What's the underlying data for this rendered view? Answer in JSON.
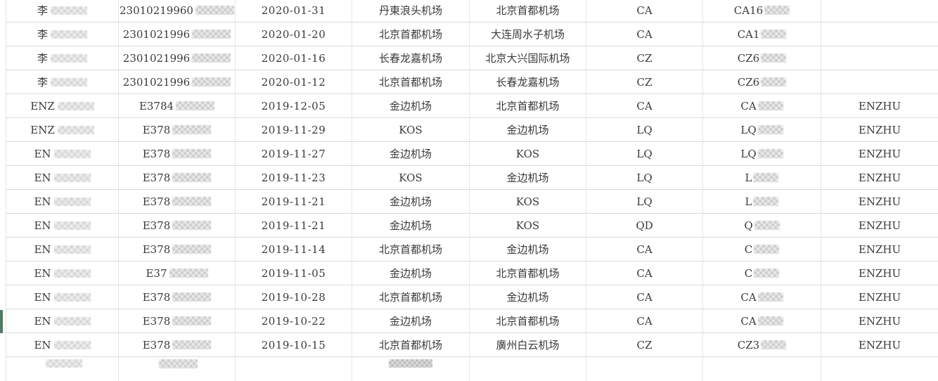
{
  "colors": {
    "row_marker_green": "#4e7d64",
    "grid_line": "#dadada",
    "text": "#3a3a3a"
  },
  "table": {
    "column_keys": [
      "name",
      "id",
      "date",
      "from",
      "to",
      "airline",
      "flight",
      "passenger"
    ],
    "rows": [
      {
        "name": "李",
        "name_blur": true,
        "id": "23010219960",
        "id_blur": true,
        "date": "2020-01-31",
        "from": "丹東浪头机场",
        "to": "北京首都机场",
        "airline": "CA",
        "flight": "CA16",
        "flight_blur": true,
        "passenger": ""
      },
      {
        "name": "李",
        "name_blur": true,
        "id": "2301021996",
        "id_blur": true,
        "date": "2020-01-20",
        "from": "北京首都机场",
        "to": "大连周水子机场",
        "airline": "CA",
        "flight": "CA1",
        "flight_blur": true,
        "passenger": ""
      },
      {
        "name": "李",
        "name_blur": true,
        "id": "2301021996",
        "id_blur": true,
        "date": "2020-01-16",
        "from": "长春龙嘉机场",
        "to": "北京大兴国际机场",
        "airline": "CZ",
        "flight": "CZ6",
        "flight_blur": true,
        "passenger": ""
      },
      {
        "name": "李",
        "name_blur": true,
        "id": "2301021996",
        "id_blur": true,
        "date": "2020-01-12",
        "from": "北京首都机场",
        "to": "长春龙嘉机场",
        "airline": "CZ",
        "flight": "CZ6",
        "flight_blur": true,
        "passenger": ""
      },
      {
        "name": "ENZ",
        "name_blur": true,
        "id": "E3784",
        "id_blur": true,
        "date": "2019-12-05",
        "from": "金边机场",
        "to": "北京首都机场",
        "airline": "CA",
        "flight": "CA",
        "flight_blur": true,
        "passenger": "ENZHU"
      },
      {
        "name": "ENZ",
        "name_blur": true,
        "id": "E378",
        "id_blur": true,
        "date": "2019-11-29",
        "from": "KOS",
        "to": "金边机场",
        "airline": "LQ",
        "flight": "LQ",
        "flight_blur": true,
        "passenger": "ENZHU"
      },
      {
        "name": "EN",
        "name_blur": true,
        "id": "E378",
        "id_blur": true,
        "date": "2019-11-27",
        "from": "金边机场",
        "to": "KOS",
        "airline": "LQ",
        "flight": "LQ",
        "flight_blur": true,
        "passenger": "ENZHU"
      },
      {
        "name": "EN",
        "name_blur": true,
        "id": "E378",
        "id_blur": true,
        "date": "2019-11-23",
        "from": "KOS",
        "to": "金边机场",
        "airline": "LQ",
        "flight": "L",
        "flight_blur": true,
        "passenger": "ENZHU"
      },
      {
        "name": "EN",
        "name_blur": true,
        "id": "E378",
        "id_blur": true,
        "date": "2019-11-21",
        "from": "金边机场",
        "to": "KOS",
        "airline": "LQ",
        "flight": "L",
        "flight_blur": true,
        "passenger": "ENZHU"
      },
      {
        "name": "EN",
        "name_blur": true,
        "id": "E378",
        "id_blur": true,
        "date": "2019-11-21",
        "from": "金边机场",
        "to": "KOS",
        "airline": "QD",
        "flight": "Q",
        "flight_blur": true,
        "passenger": "ENZHU"
      },
      {
        "name": "EN",
        "name_blur": true,
        "id": "E378",
        "id_blur": true,
        "date": "2019-11-14",
        "from": "北京首都机场",
        "to": "金边机场",
        "airline": "CA",
        "flight": "C",
        "flight_blur": true,
        "passenger": "ENZHU"
      },
      {
        "name": "EN",
        "name_blur": true,
        "id": "E37",
        "id_blur": true,
        "date": "2019-11-05",
        "from": "金边机场",
        "to": "北京首都机场",
        "airline": "CA",
        "flight": "C",
        "flight_blur": true,
        "passenger": "ENZHU"
      },
      {
        "name": "EN",
        "name_blur": true,
        "id": "E378",
        "id_blur": true,
        "date": "2019-10-28",
        "from": "北京首都机场",
        "to": "金边机场",
        "airline": "CA",
        "flight": "CA",
        "flight_blur": true,
        "passenger": "ENZHU"
      },
      {
        "name": "EN",
        "name_blur": true,
        "id": "E378",
        "id_blur": true,
        "date": "2019-10-22",
        "from": "金边机场",
        "to": "北京首都机场",
        "airline": "CA",
        "flight": "CA",
        "flight_blur": true,
        "passenger": "ENZHU"
      },
      {
        "name": "EN",
        "name_blur": true,
        "id": "E378",
        "id_blur": true,
        "date": "2019-10-15",
        "from": "北京首都机场",
        "to": "廣州白云机场",
        "airline": "CZ",
        "flight": "CZ3",
        "flight_blur": true,
        "passenger": "ENZHU"
      }
    ],
    "partial_bottom_row": {
      "visible": true,
      "redacted_columns": [
        "name",
        "id",
        "from"
      ]
    },
    "marked_row_index": 14
  }
}
